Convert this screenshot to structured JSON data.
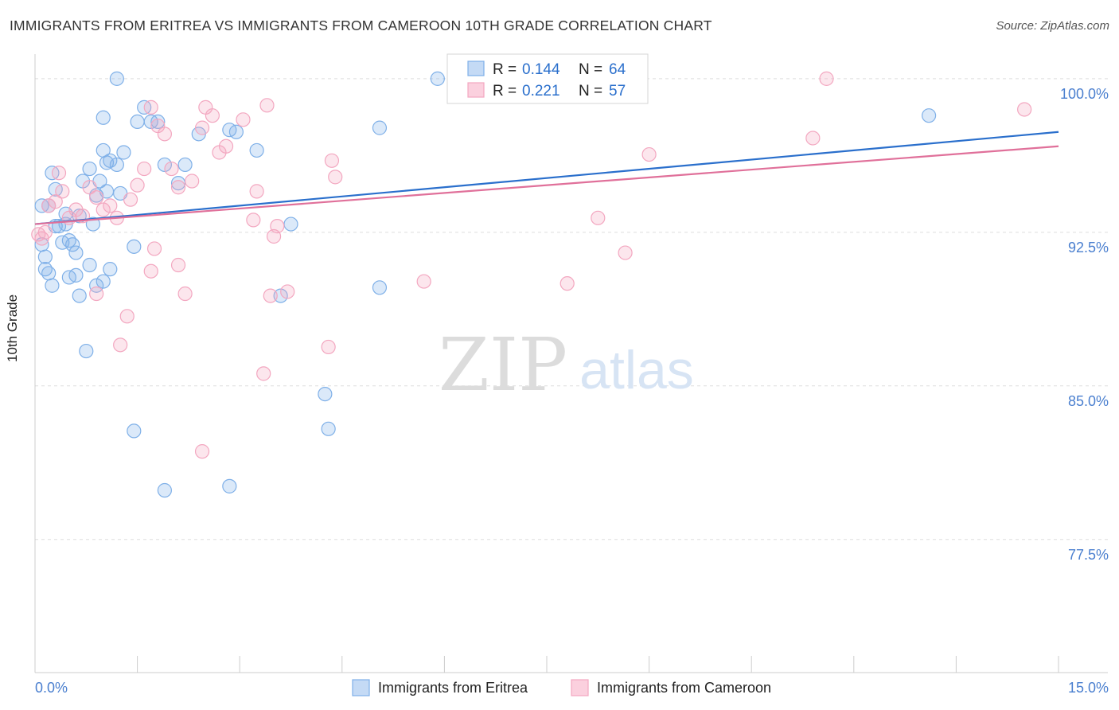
{
  "title": "IMMIGRANTS FROM ERITREA VS IMMIGRANTS FROM CAMEROON 10TH GRADE CORRELATION CHART",
  "source": "Source: ZipAtlas.com",
  "watermark": {
    "zip": "ZIP",
    "atlas": "atlas"
  },
  "chart_data": {
    "type": "scatter",
    "ylabel": "10th Grade",
    "xlim": [
      0,
      15
    ],
    "ylim": [
      71.0,
      101.2
    ],
    "x_tick_labels": [
      {
        "value": 0,
        "label": "0.0%"
      },
      {
        "value": 15,
        "label": "15.0%"
      }
    ],
    "y_ticks": [
      {
        "value": 100.0,
        "label": "100.0%"
      },
      {
        "value": 92.5,
        "label": "92.5%"
      },
      {
        "value": 85.0,
        "label": "85.0%"
      },
      {
        "value": 77.5,
        "label": "77.5%"
      }
    ],
    "legend": [
      {
        "r_label": "R =",
        "r_value": "0.144",
        "n_label": "N =",
        "n_value": "64"
      },
      {
        "r_label": "R =",
        "r_value": "0.221",
        "n_label": "N =",
        "n_value": "57"
      }
    ],
    "series": [
      {
        "name": "Immigrants from Eritrea",
        "color": "#7fb0e8",
        "line_color": "#2a6fcc",
        "trend": {
          "x0": 0,
          "y0": 92.9,
          "x1": 15,
          "y1": 97.4
        },
        "points": [
          [
            0.1,
            93.8
          ],
          [
            0.2,
            93.8
          ],
          [
            0.3,
            92.8
          ],
          [
            0.15,
            91.3
          ],
          [
            0.25,
            95.4
          ],
          [
            0.3,
            94.6
          ],
          [
            0.4,
            92.0
          ],
          [
            0.45,
            93.4
          ],
          [
            0.5,
            92.1
          ],
          [
            0.6,
            91.5
          ],
          [
            0.7,
            95.0
          ],
          [
            0.8,
            95.6
          ],
          [
            0.9,
            94.3
          ],
          [
            1.0,
            96.5
          ],
          [
            1.05,
            95.9
          ],
          [
            1.1,
            96.0
          ],
          [
            1.2,
            95.8
          ],
          [
            1.3,
            96.4
          ],
          [
            1.0,
            98.1
          ],
          [
            1.5,
            97.9
          ],
          [
            1.6,
            98.6
          ],
          [
            1.7,
            97.9
          ],
          [
            1.8,
            97.9
          ],
          [
            1.9,
            95.8
          ],
          [
            2.1,
            94.9
          ],
          [
            2.2,
            95.8
          ],
          [
            2.4,
            97.3
          ],
          [
            1.2,
            100.0
          ],
          [
            0.1,
            91.9
          ],
          [
            0.15,
            90.7
          ],
          [
            0.25,
            89.9
          ],
          [
            0.35,
            92.8
          ],
          [
            0.5,
            90.3
          ],
          [
            0.6,
            90.4
          ],
          [
            0.65,
            89.4
          ],
          [
            0.8,
            90.9
          ],
          [
            0.9,
            89.9
          ],
          [
            1.0,
            90.1
          ],
          [
            1.1,
            90.7
          ],
          [
            1.45,
            91.8
          ],
          [
            0.75,
            86.7
          ],
          [
            1.45,
            82.8
          ],
          [
            1.9,
            79.9
          ],
          [
            2.85,
            80.1
          ],
          [
            2.85,
            97.5
          ],
          [
            2.95,
            97.4
          ],
          [
            3.25,
            96.5
          ],
          [
            3.6,
            89.4
          ],
          [
            3.75,
            92.9
          ],
          [
            4.25,
            84.6
          ],
          [
            4.3,
            82.9
          ],
          [
            5.05,
            97.6
          ],
          [
            5.05,
            89.8
          ],
          [
            5.9,
            100.0
          ],
          [
            6.4,
            99.3
          ],
          [
            13.1,
            98.2
          ],
          [
            0.55,
            91.9
          ],
          [
            0.85,
            92.9
          ],
          [
            0.65,
            93.3
          ],
          [
            1.05,
            94.5
          ],
          [
            1.25,
            94.4
          ],
          [
            0.95,
            95.0
          ],
          [
            0.45,
            92.9
          ],
          [
            0.2,
            90.5
          ]
        ]
      },
      {
        "name": "Immigrants from Cameroon",
        "color": "#f3a7c0",
        "line_color": "#e0709a",
        "trend": {
          "x0": 0,
          "y0": 92.9,
          "x1": 15,
          "y1": 96.7
        },
        "points": [
          [
            0.05,
            92.4
          ],
          [
            0.1,
            92.2
          ],
          [
            0.2,
            93.8
          ],
          [
            0.3,
            94.0
          ],
          [
            0.4,
            94.5
          ],
          [
            0.5,
            93.2
          ],
          [
            0.6,
            93.6
          ],
          [
            0.7,
            93.3
          ],
          [
            0.8,
            94.7
          ],
          [
            0.9,
            94.2
          ],
          [
            1.0,
            93.6
          ],
          [
            1.1,
            93.8
          ],
          [
            1.2,
            93.2
          ],
          [
            1.4,
            94.1
          ],
          [
            1.5,
            94.8
          ],
          [
            1.6,
            95.6
          ],
          [
            1.7,
            98.6
          ],
          [
            1.8,
            97.7
          ],
          [
            1.9,
            97.3
          ],
          [
            2.0,
            95.6
          ],
          [
            2.1,
            94.7
          ],
          [
            2.3,
            95.0
          ],
          [
            2.45,
            97.6
          ],
          [
            2.5,
            98.6
          ],
          [
            2.6,
            98.2
          ],
          [
            2.7,
            96.4
          ],
          [
            2.8,
            96.7
          ],
          [
            3.05,
            98.0
          ],
          [
            3.25,
            94.5
          ],
          [
            3.2,
            93.1
          ],
          [
            3.4,
            98.7
          ],
          [
            3.5,
            92.3
          ],
          [
            3.55,
            92.8
          ],
          [
            3.7,
            89.6
          ],
          [
            3.45,
            89.4
          ],
          [
            3.35,
            85.6
          ],
          [
            2.45,
            81.8
          ],
          [
            1.25,
            87.0
          ],
          [
            1.35,
            88.4
          ],
          [
            0.9,
            89.5
          ],
          [
            1.7,
            90.6
          ],
          [
            1.75,
            91.7
          ],
          [
            2.1,
            90.9
          ],
          [
            2.2,
            89.5
          ],
          [
            4.3,
            86.9
          ],
          [
            4.35,
            96.0
          ],
          [
            4.4,
            95.2
          ],
          [
            5.7,
            90.1
          ],
          [
            7.8,
            90.0
          ],
          [
            8.25,
            93.2
          ],
          [
            8.65,
            91.5
          ],
          [
            9.0,
            96.3
          ],
          [
            11.4,
            97.1
          ],
          [
            11.6,
            100.0
          ],
          [
            14.5,
            98.5
          ],
          [
            0.15,
            92.5
          ],
          [
            0.35,
            95.4
          ]
        ]
      }
    ]
  }
}
